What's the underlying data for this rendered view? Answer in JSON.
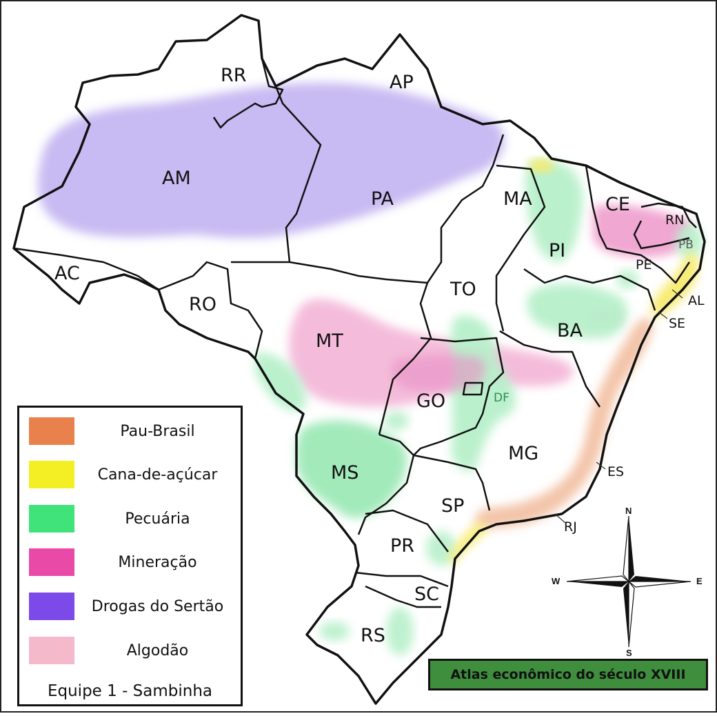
{
  "states": {
    "RR": "RR",
    "AP": "AP",
    "AM": "AM",
    "PA": "PA",
    "MA": "MA",
    "CE": "CE",
    "RN": "RN",
    "PB": "PB",
    "PE": "PE",
    "PI": "PI",
    "AL": "AL",
    "SE": "SE",
    "AC": "AC",
    "RO": "RO",
    "TO": "TO",
    "BA": "BA",
    "MT": "MT",
    "GO": "GO",
    "DF": "DF",
    "MG": "MG",
    "ES": "ES",
    "MS": "MS",
    "SP": "SP",
    "RJ": "RJ",
    "PR": "PR",
    "SC": "SC",
    "RS": "RS"
  },
  "legend": {
    "items": [
      {
        "label": "Pau-Brasil",
        "color": "#e8814c"
      },
      {
        "label": "Cana-de-açúcar",
        "color": "#f4ee24"
      },
      {
        "label": "Pecuária",
        "color": "#3fe37a"
      },
      {
        "label": "Mineração",
        "color": "#e94aa8"
      },
      {
        "label": "Drogas do Sertão",
        "color": "#7b4ae8"
      },
      {
        "label": "Algodão",
        "color": "#f4bacb"
      }
    ],
    "footer": "Equipe 1 - Sambinha"
  },
  "title": "Atlas econômico do século XVIII",
  "compass": {
    "north": "N",
    "south": "S",
    "east": "E",
    "west": "W"
  }
}
